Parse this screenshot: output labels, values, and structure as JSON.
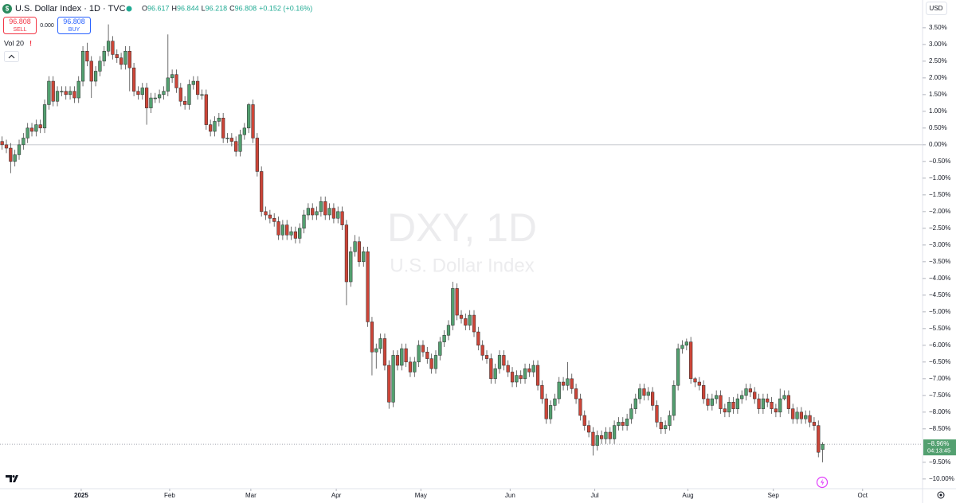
{
  "chart_data": {
    "type": "candlestick",
    "title": "U.S. Dollar Index · 1D · TVC",
    "watermark": "DXY, 1D",
    "watermark_subtitle": "U.S. Dollar Index",
    "ohlc_legend": [
      {
        "label": "O",
        "value": 96.617
      },
      {
        "label": "H",
        "value": 96.844
      },
      {
        "label": "L",
        "value": 96.218
      },
      {
        "label": "C",
        "value": 96.808
      }
    ],
    "change": "+0.152 (+0.16%)",
    "sell": {
      "price": "96.808",
      "label": "SELL"
    },
    "spread": "0.000",
    "buy": {
      "price": "96.808",
      "label": "BUY"
    },
    "volume_indicator": "Vol 20",
    "currency": "USD",
    "up_color": "#53a070",
    "down_color": "#cc4538",
    "baseline_line": true,
    "xlim": [
      -0.5,
      216.5
    ],
    "ylim": [
      -10.29,
      4.33
    ],
    "xticks": [
      {
        "value": 18.6,
        "label": "2025"
      },
      {
        "value": 39.4,
        "label": "Feb"
      },
      {
        "value": 58.5,
        "label": "Mar"
      },
      {
        "value": 78.6,
        "label": "Apr"
      },
      {
        "value": 98.5,
        "label": "May"
      },
      {
        "value": 119.5,
        "label": "Jun"
      },
      {
        "value": 139.4,
        "label": "Jul"
      },
      {
        "value": 161.3,
        "label": "Aug"
      },
      {
        "value": 181.4,
        "label": "Sep"
      },
      {
        "value": 202.4,
        "label": "Oct"
      }
    ],
    "yticks": [
      {
        "value": 3.5,
        "label": "3.50%"
      },
      {
        "value": 3,
        "label": "3.00%"
      },
      {
        "value": 2.5,
        "label": "2.50%"
      },
      {
        "value": 2,
        "label": "2.00%"
      },
      {
        "value": 1.5,
        "label": "1.50%"
      },
      {
        "value": 1,
        "label": "1.00%"
      },
      {
        "value": 0.5,
        "label": "0.50%"
      },
      {
        "value": 0,
        "label": "0.00%"
      },
      {
        "value": -0.5,
        "label": "−0.50%"
      },
      {
        "value": -1,
        "label": "−1.00%"
      },
      {
        "value": -1.5,
        "label": "−1.50%"
      },
      {
        "value": -2,
        "label": "−2.00%"
      },
      {
        "value": -2.5,
        "label": "−2.50%"
      },
      {
        "value": -3,
        "label": "−3.00%"
      },
      {
        "value": -3.5,
        "label": "−3.50%"
      },
      {
        "value": -4,
        "label": "−4.00%"
      },
      {
        "value": -4.5,
        "label": "−4.50%"
      },
      {
        "value": -5,
        "label": "−5.00%"
      },
      {
        "value": -5.5,
        "label": "−5.50%"
      },
      {
        "value": -6,
        "label": "−6.00%"
      },
      {
        "value": -6.5,
        "label": "−6.50%"
      },
      {
        "value": -7,
        "label": "−7.00%"
      },
      {
        "value": -7.5,
        "label": "−7.50%"
      },
      {
        "value": -8,
        "label": "−8.00%"
      },
      {
        "value": -8.5,
        "label": "−8.50%"
      },
      {
        "value": -9.5,
        "label": "−9.50%"
      },
      {
        "value": -10,
        "label": "−10.00%"
      }
    ],
    "last_price": {
      "value": -8.96,
      "label": "−8.96%"
    },
    "countdown": "04:13:45",
    "open": [
      0.1,
      0.0,
      -0.1,
      -0.5,
      -0.3,
      0.0,
      0.2,
      0.5,
      0.4,
      0.6,
      0.5,
      1.2,
      1.9,
      1.3,
      1.6,
      1.6,
      1.5,
      1.6,
      1.4,
      1.9,
      2.8,
      2.5,
      1.9,
      2.2,
      2.5,
      2.8,
      3.1,
      2.7,
      2.6,
      2.4,
      2.8,
      2.3,
      1.6,
      1.5,
      1.7,
      1.1,
      1.4,
      1.4,
      1.5,
      1.6,
      2.0,
      2.1,
      1.7,
      1.3,
      1.2,
      1.8,
      1.9,
      1.5,
      1.5,
      0.6,
      0.4,
      0.7,
      0.8,
      0.2,
      0.2,
      0.1,
      -0.2,
      0.3,
      0.5,
      1.2,
      0.2,
      -0.8,
      -2.0,
      -2.1,
      -2.2,
      -2.3,
      -2.7,
      -2.4,
      -2.7,
      -2.6,
      -2.8,
      -2.5,
      -2.1,
      -1.9,
      -2.1,
      -2.0,
      -1.7,
      -2.1,
      -1.9,
      -2.2,
      -2.0,
      -2.4,
      -4.1,
      -3.2,
      -2.9,
      -3.5,
      -3.2,
      -5.3,
      -6.2,
      -6.1,
      -5.8,
      -6.6,
      -7.7,
      -6.3,
      -6.6,
      -6.1,
      -6.5,
      -6.8,
      -6.5,
      -6.0,
      -6.2,
      -6.4,
      -6.7,
      -6.3,
      -5.9,
      -5.7,
      -5.4,
      -4.3,
      -5.1,
      -5.2,
      -5.4,
      -5.1,
      -5.6,
      -6.0,
      -6.3,
      -6.4,
      -7.0,
      -6.7,
      -6.3,
      -6.6,
      -6.8,
      -7.1,
      -6.9,
      -7.0,
      -6.7,
      -6.8,
      -6.6,
      -7.2,
      -7.6,
      -8.2,
      -7.8,
      -7.6,
      -7.1,
      -7.2,
      -7.0,
      -7.3,
      -7.6,
      -8.1,
      -8.4,
      -8.6,
      -9.0,
      -8.7,
      -8.8,
      -8.6,
      -8.8,
      -8.4,
      -8.3,
      -8.4,
      -8.2,
      -7.9,
      -7.6,
      -7.3,
      -7.5,
      -7.4,
      -7.8,
      -8.3,
      -8.5,
      -8.4,
      -8.1,
      -7.2,
      -6.1,
      -6.0,
      -5.9,
      -7.0,
      -7.1,
      -7.2,
      -7.6,
      -7.8,
      -7.6,
      -7.5,
      -7.9,
      -8.0,
      -7.7,
      -7.9,
      -7.6,
      -7.5,
      -7.3,
      -7.4,
      -7.6,
      -7.9,
      -7.6,
      -7.7,
      -7.9,
      -8.0,
      -7.6,
      -7.5,
      -7.9,
      -8.2,
      -8.0,
      -8.2,
      -8.1,
      -8.3,
      -8.4,
      -9.12
    ],
    "high": [
      0.25,
      0.15,
      0.05,
      -0.15,
      0.15,
      0.35,
      0.65,
      0.65,
      0.75,
      0.75,
      1.35,
      2.05,
      2.05,
      1.75,
      1.75,
      1.75,
      1.75,
      1.75,
      2.05,
      2.95,
      3.05,
      2.65,
      2.35,
      2.65,
      2.95,
      3.6,
      3.25,
      2.85,
      2.75,
      2.95,
      2.95,
      2.45,
      1.75,
      1.85,
      1.85,
      1.55,
      1.55,
      1.65,
      1.75,
      3.3,
      2.25,
      2.25,
      1.85,
      1.45,
      1.95,
      2.05,
      2.05,
      1.65,
      1.65,
      0.75,
      0.85,
      0.95,
      0.95,
      0.35,
      0.35,
      0.25,
      0.45,
      0.65,
      1.25,
      1.35,
      0.35,
      -0.65,
      -1.85,
      -1.95,
      -2.05,
      -2.15,
      -2.25,
      -2.25,
      -2.45,
      -2.45,
      -2.35,
      -1.95,
      -1.75,
      -1.75,
      -1.85,
      -1.55,
      -1.55,
      -1.75,
      -1.75,
      -1.85,
      -1.85,
      -2.25,
      -3.05,
      -2.7,
      -2.75,
      -3.05,
      -3.05,
      -5.15,
      -5.95,
      -5.65,
      -5.65,
      -6.45,
      -6.15,
      -6.15,
      -5.95,
      -5.95,
      -6.35,
      -6.35,
      -5.85,
      -5.85,
      -6.05,
      -6.25,
      -6.15,
      -5.75,
      -5.55,
      -5.25,
      -4.1,
      -4.15,
      -4.95,
      -5.05,
      -4.95,
      -4.95,
      -5.45,
      -5.85,
      -6.15,
      -6.25,
      -6.55,
      -6.15,
      -6.15,
      -6.45,
      -6.65,
      -6.75,
      -6.75,
      -6.55,
      -6.55,
      -6.45,
      -6.45,
      -7.05,
      -7.45,
      -7.65,
      -7.45,
      -6.95,
      -6.95,
      -6.5,
      -6.85,
      -7.15,
      -7.45,
      -7.95,
      -8.25,
      -8.45,
      -8.55,
      -8.55,
      -8.45,
      -8.45,
      -8.25,
      -8.15,
      -8.15,
      -8.05,
      -7.75,
      -7.45,
      -7.15,
      -7.15,
      -7.25,
      -7.25,
      -7.65,
      -8.15,
      -8.25,
      -7.95,
      -7.05,
      -5.95,
      -5.85,
      -5.8,
      -5.75,
      -6.95,
      -6.95,
      -7.05,
      -7.45,
      -7.45,
      -7.35,
      -7.35,
      -7.75,
      -7.55,
      -7.55,
      -7.45,
      -7.35,
      -7.15,
      -7.15,
      -7.25,
      -7.45,
      -7.45,
      -7.45,
      -7.55,
      -7.75,
      -7.3,
      -7.35,
      -7.35,
      -7.75,
      -7.85,
      -7.85,
      -7.95,
      -7.95,
      -8.15,
      -8.25,
      -8.9
    ],
    "low": [
      -0.15,
      -0.25,
      -0.85,
      -0.65,
      -0.45,
      -0.15,
      0.05,
      0.25,
      0.25,
      0.35,
      0.35,
      1.05,
      1.15,
      1.15,
      1.45,
      1.35,
      1.35,
      1.25,
      1.25,
      1.75,
      2.35,
      1.4,
      1.75,
      2.05,
      2.35,
      2.65,
      2.55,
      2.45,
      2.25,
      2.25,
      1.6,
      1.45,
      1.35,
      1.35,
      0.6,
      0.95,
      1.25,
      1.25,
      1.35,
      1.45,
      1.85,
      1.55,
      1.15,
      1.05,
      1.05,
      1.65,
      1.35,
      1.35,
      0.45,
      0.25,
      0.25,
      0.55,
      0.05,
      0.05,
      -0.05,
      -0.35,
      -0.35,
      0.15,
      0.35,
      0.05,
      -0.95,
      -2.15,
      -2.25,
      -2.35,
      -2.45,
      -2.85,
      -2.85,
      -2.85,
      -2.85,
      -2.95,
      -2.95,
      -2.65,
      -2.25,
      -2.25,
      -2.25,
      -2.15,
      -2.25,
      -2.25,
      -2.35,
      -2.35,
      -2.55,
      -4.8,
      -4.25,
      -3.35,
      -3.65,
      -3.65,
      -5.45,
      -6.9,
      -6.7,
      -6.25,
      -6.75,
      -7.9,
      -7.85,
      -6.75,
      -6.75,
      -6.65,
      -6.95,
      -6.95,
      -6.65,
      -6.35,
      -6.55,
      -6.85,
      -6.85,
      -6.45,
      -6.05,
      -5.85,
      -5.55,
      -5.25,
      -5.35,
      -5.55,
      -5.55,
      -5.75,
      -6.15,
      -6.45,
      -6.55,
      -7.15,
      -7.15,
      -6.85,
      -6.75,
      -6.95,
      -7.25,
      -7.25,
      -7.15,
      -7.15,
      -6.95,
      -6.95,
      -7.35,
      -7.75,
      -8.35,
      -8.35,
      -7.95,
      -7.75,
      -7.35,
      -7.35,
      -7.45,
      -7.75,
      -8.25,
      -8.55,
      -8.75,
      -9.3,
      -9.15,
      -8.95,
      -8.95,
      -8.95,
      -8.95,
      -8.55,
      -8.55,
      -8.55,
      -8.35,
      -8.05,
      -7.75,
      -7.65,
      -7.65,
      -7.95,
      -8.45,
      -8.65,
      -8.65,
      -8.55,
      -8.25,
      -7.35,
      -6.25,
      -6.15,
      -7.15,
      -7.25,
      -7.35,
      -7.75,
      -7.95,
      -7.95,
      -7.75,
      -8.05,
      -8.15,
      -8.15,
      -8.05,
      -8.05,
      -7.75,
      -7.65,
      -7.55,
      -7.75,
      -8.05,
      -8.05,
      -7.85,
      -8.05,
      -8.15,
      -8.15,
      -7.65,
      -8.05,
      -8.35,
      -8.35,
      -8.35,
      -8.35,
      -8.45,
      -8.55,
      -9.35,
      -9.5
    ],
    "close": [
      0.0,
      -0.1,
      -0.5,
      -0.3,
      0.0,
      0.2,
      0.5,
      0.4,
      0.6,
      0.5,
      1.2,
      1.9,
      1.3,
      1.6,
      1.6,
      1.5,
      1.6,
      1.4,
      1.9,
      2.8,
      2.5,
      1.9,
      2.2,
      2.5,
      2.8,
      3.1,
      2.7,
      2.6,
      2.4,
      2.8,
      2.3,
      1.6,
      1.5,
      1.7,
      1.1,
      1.4,
      1.4,
      1.5,
      1.6,
      2.0,
      2.1,
      1.7,
      1.3,
      1.2,
      1.8,
      1.9,
      1.5,
      1.5,
      0.6,
      0.4,
      0.7,
      0.8,
      0.2,
      0.2,
      0.1,
      -0.2,
      0.3,
      0.5,
      1.2,
      0.2,
      -0.8,
      -2.0,
      -2.1,
      -2.2,
      -2.3,
      -2.7,
      -2.4,
      -2.7,
      -2.6,
      -2.8,
      -2.5,
      -2.1,
      -1.9,
      -2.1,
      -2.0,
      -1.7,
      -2.1,
      -1.9,
      -2.2,
      -2.0,
      -2.4,
      -4.1,
      -3.2,
      -2.9,
      -3.5,
      -3.2,
      -5.3,
      -6.2,
      -6.1,
      -5.8,
      -6.6,
      -7.7,
      -6.3,
      -6.6,
      -6.1,
      -6.5,
      -6.8,
      -6.5,
      -6.0,
      -6.2,
      -6.4,
      -6.7,
      -6.3,
      -5.9,
      -5.7,
      -5.4,
      -4.3,
      -5.1,
      -5.2,
      -5.4,
      -5.1,
      -5.6,
      -6.0,
      -6.3,
      -6.4,
      -7.0,
      -6.7,
      -6.3,
      -6.6,
      -6.8,
      -7.1,
      -6.9,
      -7.0,
      -6.7,
      -6.8,
      -6.6,
      -7.2,
      -7.6,
      -8.2,
      -7.8,
      -7.6,
      -7.1,
      -7.2,
      -7.0,
      -7.3,
      -7.6,
      -8.1,
      -8.4,
      -8.6,
      -9.0,
      -8.7,
      -8.8,
      -8.6,
      -8.8,
      -8.4,
      -8.3,
      -8.4,
      -8.2,
      -7.9,
      -7.6,
      -7.3,
      -7.5,
      -7.4,
      -7.8,
      -8.3,
      -8.5,
      -8.4,
      -8.1,
      -7.2,
      -6.1,
      -6.0,
      -5.9,
      -7.0,
      -7.1,
      -7.2,
      -7.6,
      -7.8,
      -7.6,
      -7.5,
      -7.9,
      -8.0,
      -7.7,
      -7.9,
      -7.6,
      -7.5,
      -7.3,
      -7.4,
      -7.6,
      -7.9,
      -7.6,
      -7.7,
      -7.9,
      -8.0,
      -7.6,
      -7.5,
      -7.9,
      -8.2,
      -8.0,
      -8.2,
      -8.1,
      -8.3,
      -8.4,
      -9.2,
      -8.96
    ]
  }
}
